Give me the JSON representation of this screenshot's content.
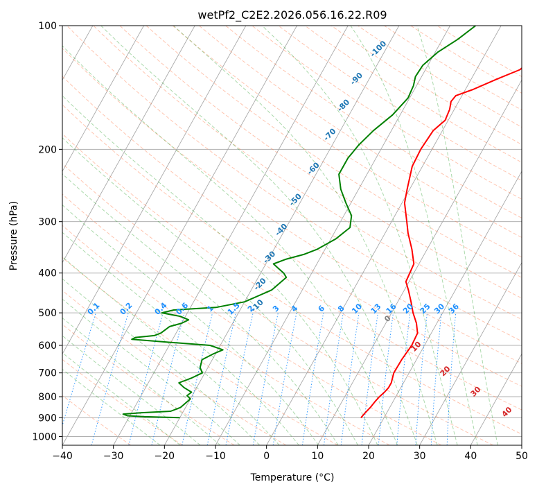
{
  "chart_data": {
    "type": "line",
    "subtype": "skew-t log-p diagram",
    "title": "wetPf2_C2E2.2026.056.16.22.R09",
    "xlabel": "Temperature (°C)",
    "ylabel": "Pressure (hPa)",
    "xlim": [
      -40,
      50
    ],
    "ylim": [
      1050,
      100
    ],
    "x_ticks": [
      -40,
      -30,
      -20,
      -10,
      0,
      10,
      20,
      30,
      40,
      50
    ],
    "y_ticks": [
      100,
      200,
      300,
      400,
      500,
      600,
      700,
      800,
      900,
      1000
    ],
    "skew_deg_per_decade": 45,
    "grid": true,
    "series": [
      {
        "name": "Temperature",
        "color": "#ff0000",
        "points": [
          {
            "p": 900,
            "t": 15.5
          },
          {
            "p": 880,
            "t": 15.7
          },
          {
            "p": 850,
            "t": 16.2
          },
          {
            "p": 820,
            "t": 16.5
          },
          {
            "p": 800,
            "t": 16.8
          },
          {
            "p": 780,
            "t": 17.3
          },
          {
            "p": 760,
            "t": 17.6
          },
          {
            "p": 740,
            "t": 17.6
          },
          {
            "p": 700,
            "t": 17.0
          },
          {
            "p": 650,
            "t": 17.1
          },
          {
            "p": 600,
            "t": 17.5
          },
          {
            "p": 560,
            "t": 17.3
          },
          {
            "p": 530,
            "t": 16.0
          },
          {
            "p": 500,
            "t": 14.2
          },
          {
            "p": 470,
            "t": 12.6
          },
          {
            "p": 440,
            "t": 10.8
          },
          {
            "p": 420,
            "t": 9.4
          },
          {
            "p": 400,
            "t": 9.2
          },
          {
            "p": 380,
            "t": 9.0
          },
          {
            "p": 350,
            "t": 7.0
          },
          {
            "p": 320,
            "t": 4.5
          },
          {
            "p": 300,
            "t": 3.0
          },
          {
            "p": 270,
            "t": 0.5
          },
          {
            "p": 250,
            "t": -0.5
          },
          {
            "p": 220,
            "t": -2.0
          },
          {
            "p": 200,
            "t": -2.2
          },
          {
            "p": 180,
            "t": -1.8
          },
          {
            "p": 170,
            "t": -0.6
          },
          {
            "p": 160,
            "t": -0.9
          },
          {
            "p": 153,
            "t": -1.5
          },
          {
            "p": 148,
            "t": -1.2
          },
          {
            "p": 143,
            "t": 1.5
          },
          {
            "p": 135,
            "t": 5.0
          },
          {
            "p": 128,
            "t": 8.5
          },
          {
            "p": 120,
            "t": 10.0
          },
          {
            "p": 110,
            "t": 10.4
          },
          {
            "p": 104,
            "t": 11.0
          },
          {
            "p": 100,
            "t": 11.3
          }
        ]
      },
      {
        "name": "Dewpoint",
        "color": "#008000",
        "points": [
          {
            "p": 900,
            "t": -20.0
          },
          {
            "p": 895,
            "t": -27.0
          },
          {
            "p": 890,
            "t": -30.5
          },
          {
            "p": 882,
            "t": -31.5
          },
          {
            "p": 875,
            "t": -28.0
          },
          {
            "p": 868,
            "t": -22.5
          },
          {
            "p": 850,
            "t": -21.0
          },
          {
            "p": 830,
            "t": -20.5
          },
          {
            "p": 810,
            "t": -20.0
          },
          {
            "p": 795,
            "t": -21.0
          },
          {
            "p": 780,
            "t": -20.5
          },
          {
            "p": 760,
            "t": -22.5
          },
          {
            "p": 740,
            "t": -24.0
          },
          {
            "p": 720,
            "t": -22.0
          },
          {
            "p": 700,
            "t": -20.5
          },
          {
            "p": 680,
            "t": -21.5
          },
          {
            "p": 650,
            "t": -22.0
          },
          {
            "p": 630,
            "t": -20.5
          },
          {
            "p": 615,
            "t": -19.0
          },
          {
            "p": 600,
            "t": -22.0
          },
          {
            "p": 590,
            "t": -30.0
          },
          {
            "p": 580,
            "t": -38.0
          },
          {
            "p": 574,
            "t": -37.5
          },
          {
            "p": 568,
            "t": -34.0
          },
          {
            "p": 560,
            "t": -33.0
          },
          {
            "p": 540,
            "t": -32.0
          },
          {
            "p": 530,
            "t": -30.0
          },
          {
            "p": 520,
            "t": -29.0
          },
          {
            "p": 510,
            "t": -31.0
          },
          {
            "p": 500,
            "t": -35.0
          },
          {
            "p": 492,
            "t": -33.0
          },
          {
            "p": 485,
            "t": -25.0
          },
          {
            "p": 470,
            "t": -20.0
          },
          {
            "p": 440,
            "t": -16.0
          },
          {
            "p": 410,
            "t": -14.5
          },
          {
            "p": 400,
            "t": -15.5
          },
          {
            "p": 390,
            "t": -17.0
          },
          {
            "p": 380,
            "t": -18.5
          },
          {
            "p": 370,
            "t": -16.5
          },
          {
            "p": 360,
            "t": -13.5
          },
          {
            "p": 350,
            "t": -11.5
          },
          {
            "p": 330,
            "t": -9.0
          },
          {
            "p": 310,
            "t": -7.5
          },
          {
            "p": 290,
            "t": -8.5
          },
          {
            "p": 270,
            "t": -11.0
          },
          {
            "p": 250,
            "t": -13.5
          },
          {
            "p": 230,
            "t": -15.5
          },
          {
            "p": 210,
            "t": -15.5
          },
          {
            "p": 195,
            "t": -14.8
          },
          {
            "p": 180,
            "t": -13.5
          },
          {
            "p": 165,
            "t": -11.5
          },
          {
            "p": 150,
            "t": -10.3
          },
          {
            "p": 140,
            "t": -10.6
          },
          {
            "p": 133,
            "t": -11.2
          },
          {
            "p": 125,
            "t": -11.0
          },
          {
            "p": 116,
            "t": -9.5
          },
          {
            "p": 108,
            "t": -7.0
          },
          {
            "p": 100,
            "t": -5.0
          }
        ]
      }
    ],
    "annotations": {
      "dry_adiabat_labels": [
        "-100",
        "-90",
        "-80",
        "-70",
        "-60",
        "-50",
        "-40",
        "-30",
        "-20",
        "-10"
      ],
      "moist_adiabat_labels": [
        "0",
        "10",
        "20",
        "30",
        "40"
      ],
      "mixing_ratio_labels": [
        "0.1",
        "0.2",
        "0.4",
        "0.6",
        "1",
        "1.5",
        "2",
        "3",
        "4",
        "6",
        "8",
        "10",
        "13",
        "16",
        "20",
        "25",
        "30",
        "36"
      ]
    },
    "colors": {
      "temperature": "#ff0000",
      "dewpoint": "#008000",
      "dry_adiabat": "#ff7f50",
      "moist_adiabat": "#2ca02c",
      "mixing_ratio": "#1f77b4",
      "isotherm": "#7f7f7f",
      "dry_label": "#1f77b4",
      "moist_label": "#d62728",
      "mixing_label": "#1e90ff"
    }
  }
}
